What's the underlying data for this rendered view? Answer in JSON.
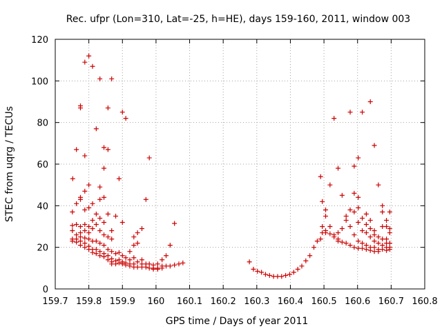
{
  "chart_data": {
    "type": "scatter",
    "title": "Rec. ufpr (Lon=310, Lat=-25, h=HE), days 159-160, 2011, window 003",
    "xlabel": "GPS time / Days of year 2011",
    "ylabel": "STEC from uqrg / TECUs",
    "xlim": [
      159.7,
      160.8
    ],
    "ylim": [
      0,
      120
    ],
    "x_ticks": [
      "159.7",
      "159.8",
      "159.9",
      "160",
      "160.1",
      "160.2",
      "160.3",
      "160.4",
      "160.5",
      "160.6",
      "160.7",
      "160.8"
    ],
    "y_ticks": [
      "0",
      "20",
      "40",
      "60",
      "80",
      "100",
      "120"
    ],
    "grid": true,
    "marker": "+",
    "color": "#cc0000",
    "series": [
      {
        "name": "STEC",
        "points": [
          [
            159.752,
            53
          ],
          [
            159.751,
            37
          ],
          [
            159.751,
            30.5
          ],
          [
            159.751,
            28
          ],
          [
            159.751,
            24
          ],
          [
            159.751,
            23
          ],
          [
            159.763,
            67
          ],
          [
            159.763,
            41
          ],
          [
            159.763,
            31
          ],
          [
            159.763,
            26
          ],
          [
            159.763,
            24
          ],
          [
            159.763,
            22.5
          ],
          [
            159.775,
            88
          ],
          [
            159.775,
            87
          ],
          [
            159.775,
            44
          ],
          [
            159.775,
            43
          ],
          [
            159.775,
            30
          ],
          [
            159.775,
            27
          ],
          [
            159.775,
            25
          ],
          [
            159.775,
            23
          ],
          [
            159.775,
            21
          ],
          [
            159.788,
            109
          ],
          [
            159.788,
            64
          ],
          [
            159.788,
            47
          ],
          [
            159.788,
            38
          ],
          [
            159.788,
            31
          ],
          [
            159.788,
            28
          ],
          [
            159.788,
            24.5
          ],
          [
            159.788,
            22
          ],
          [
            159.788,
            20
          ],
          [
            159.8,
            112
          ],
          [
            159.8,
            50
          ],
          [
            159.8,
            39
          ],
          [
            159.8,
            30
          ],
          [
            159.8,
            27
          ],
          [
            159.8,
            24
          ],
          [
            159.8,
            20.5
          ],
          [
            159.8,
            19
          ],
          [
            159.811,
            107
          ],
          [
            159.811,
            41
          ],
          [
            159.811,
            33
          ],
          [
            159.811,
            29
          ],
          [
            159.811,
            23
          ],
          [
            159.811,
            19
          ],
          [
            159.811,
            17.5
          ],
          [
            159.822,
            77
          ],
          [
            159.822,
            36
          ],
          [
            159.822,
            31
          ],
          [
            159.822,
            23
          ],
          [
            159.822,
            19
          ],
          [
            159.822,
            17
          ],
          [
            159.833,
            101
          ],
          [
            159.833,
            49
          ],
          [
            159.833,
            43
          ],
          [
            159.833,
            34
          ],
          [
            159.833,
            28
          ],
          [
            159.833,
            22
          ],
          [
            159.833,
            18
          ],
          [
            159.833,
            16
          ],
          [
            159.845,
            68
          ],
          [
            159.845,
            58
          ],
          [
            159.845,
            44
          ],
          [
            159.845,
            32
          ],
          [
            159.845,
            26
          ],
          [
            159.845,
            21
          ],
          [
            159.845,
            17
          ],
          [
            159.845,
            15.5
          ],
          [
            159.857,
            87
          ],
          [
            159.857,
            67
          ],
          [
            159.857,
            36
          ],
          [
            159.857,
            25
          ],
          [
            159.857,
            19
          ],
          [
            159.857,
            16
          ],
          [
            159.857,
            14
          ],
          [
            159.868,
            101
          ],
          [
            159.868,
            28
          ],
          [
            159.868,
            24
          ],
          [
            159.868,
            18
          ],
          [
            159.868,
            14.5
          ],
          [
            159.868,
            13
          ],
          [
            159.868,
            12
          ],
          [
            159.88,
            35
          ],
          [
            159.88,
            17
          ],
          [
            159.88,
            13.5
          ],
          [
            159.88,
            12
          ],
          [
            159.89,
            53
          ],
          [
            159.89,
            17.5
          ],
          [
            159.89,
            14
          ],
          [
            159.89,
            12.5
          ],
          [
            159.9,
            85
          ],
          [
            159.9,
            32
          ],
          [
            159.9,
            16
          ],
          [
            159.9,
            13
          ],
          [
            159.9,
            12
          ],
          [
            159.91,
            82
          ],
          [
            159.91,
            15
          ],
          [
            159.91,
            12.5
          ],
          [
            159.91,
            11.5
          ],
          [
            159.922,
            18
          ],
          [
            159.922,
            14
          ],
          [
            159.922,
            12
          ],
          [
            159.922,
            11
          ],
          [
            159.934,
            25
          ],
          [
            159.934,
            21
          ],
          [
            159.934,
            15
          ],
          [
            159.934,
            12
          ],
          [
            159.934,
            10.5
          ],
          [
            159.945,
            27
          ],
          [
            159.945,
            22
          ],
          [
            159.945,
            13
          ],
          [
            159.945,
            10.5
          ],
          [
            159.958,
            29
          ],
          [
            159.958,
            14
          ],
          [
            159.958,
            12
          ],
          [
            159.958,
            10.5
          ],
          [
            159.97,
            43
          ],
          [
            159.97,
            12
          ],
          [
            159.97,
            10.5
          ],
          [
            159.98,
            63
          ],
          [
            159.98,
            12
          ],
          [
            159.98,
            10
          ],
          [
            159.992,
            11.5
          ],
          [
            159.992,
            10
          ],
          [
            159.992,
            9.5
          ],
          [
            160.005,
            12
          ],
          [
            160.005,
            10
          ],
          [
            160.005,
            9.5
          ],
          [
            160.018,
            14
          ],
          [
            160.018,
            11
          ],
          [
            160.018,
            10
          ],
          [
            160.03,
            16
          ],
          [
            160.03,
            11
          ],
          [
            160.042,
            21
          ],
          [
            160.042,
            11
          ],
          [
            160.055,
            31.5
          ],
          [
            160.055,
            11.5
          ],
          [
            160.068,
            12
          ],
          [
            160.08,
            12.5
          ],
          [
            160.278,
            13
          ],
          [
            160.29,
            9.5
          ],
          [
            160.302,
            8.5
          ],
          [
            160.314,
            8
          ],
          [
            160.326,
            7
          ],
          [
            160.338,
            6.5
          ],
          [
            160.35,
            6
          ],
          [
            160.362,
            6
          ],
          [
            160.374,
            6
          ],
          [
            160.386,
            6.5
          ],
          [
            160.398,
            7
          ],
          [
            160.41,
            8
          ],
          [
            160.422,
            9.5
          ],
          [
            160.434,
            11
          ],
          [
            160.446,
            13.5
          ],
          [
            160.458,
            16
          ],
          [
            160.47,
            20
          ],
          [
            160.48,
            23
          ],
          [
            160.49,
            54
          ],
          [
            160.49,
            24
          ],
          [
            160.495,
            42
          ],
          [
            160.495,
            30
          ],
          [
            160.495,
            27
          ],
          [
            160.505,
            38
          ],
          [
            160.505,
            35
          ],
          [
            160.505,
            28
          ],
          [
            160.505,
            27
          ],
          [
            160.518,
            50
          ],
          [
            160.518,
            30
          ],
          [
            160.518,
            26.5
          ],
          [
            160.53,
            82
          ],
          [
            160.53,
            26
          ],
          [
            160.53,
            25
          ],
          [
            160.542,
            58
          ],
          [
            160.542,
            27
          ],
          [
            160.542,
            24
          ],
          [
            160.542,
            23
          ],
          [
            160.554,
            45
          ],
          [
            160.554,
            29
          ],
          [
            160.554,
            22.5
          ],
          [
            160.566,
            35
          ],
          [
            160.566,
            33
          ],
          [
            160.566,
            22
          ],
          [
            160.578,
            85
          ],
          [
            160.578,
            38
          ],
          [
            160.578,
            30
          ],
          [
            160.578,
            21
          ],
          [
            160.59,
            59
          ],
          [
            160.59,
            46
          ],
          [
            160.59,
            37
          ],
          [
            160.59,
            26
          ],
          [
            160.59,
            20
          ],
          [
            160.602,
            63
          ],
          [
            160.602,
            44
          ],
          [
            160.602,
            39
          ],
          [
            160.602,
            32
          ],
          [
            160.602,
            23
          ],
          [
            160.602,
            19.5
          ],
          [
            160.614,
            85
          ],
          [
            160.614,
            34
          ],
          [
            160.614,
            28
          ],
          [
            160.614,
            22
          ],
          [
            160.614,
            19.5
          ],
          [
            160.626,
            36
          ],
          [
            160.626,
            31
          ],
          [
            160.626,
            27
          ],
          [
            160.626,
            21
          ],
          [
            160.626,
            19
          ],
          [
            160.638,
            90
          ],
          [
            160.638,
            33
          ],
          [
            160.638,
            29
          ],
          [
            160.638,
            25
          ],
          [
            160.638,
            20
          ],
          [
            160.638,
            18.5
          ],
          [
            160.65,
            69
          ],
          [
            160.65,
            28
          ],
          [
            160.65,
            26
          ],
          [
            160.65,
            23
          ],
          [
            160.65,
            20
          ],
          [
            160.65,
            18
          ],
          [
            160.662,
            50
          ],
          [
            160.662,
            25
          ],
          [
            160.662,
            22
          ],
          [
            160.662,
            19
          ],
          [
            160.662,
            18
          ],
          [
            160.674,
            40
          ],
          [
            160.674,
            37
          ],
          [
            160.674,
            30
          ],
          [
            160.674,
            24
          ],
          [
            160.674,
            21
          ],
          [
            160.674,
            19
          ],
          [
            160.686,
            33
          ],
          [
            160.686,
            30
          ],
          [
            160.686,
            24
          ],
          [
            160.686,
            22
          ],
          [
            160.686,
            20
          ],
          [
            160.686,
            18.5
          ],
          [
            160.696,
            37
          ],
          [
            160.696,
            29
          ],
          [
            160.696,
            27
          ],
          [
            160.696,
            22
          ],
          [
            160.696,
            20
          ],
          [
            160.696,
            19
          ]
        ]
      }
    ]
  }
}
